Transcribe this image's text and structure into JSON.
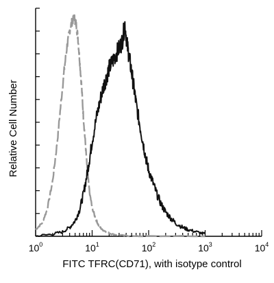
{
  "chart_data": {
    "type": "line",
    "title": "",
    "xlabel": "FITC  TFRC(CD71),  with isotype control",
    "ylabel": "Relative Cell Number",
    "x_scale": "log",
    "xlim": [
      1,
      10000
    ],
    "ylim": [
      0,
      1
    ],
    "x_ticks": [
      {
        "base": "10",
        "exp": "0"
      },
      {
        "base": "10",
        "exp": "1"
      },
      {
        "base": "10",
        "exp": "2"
      },
      {
        "base": "10",
        "exp": "3"
      },
      {
        "base": "10",
        "exp": "4"
      }
    ],
    "grid": false,
    "legend": "none",
    "series": [
      {
        "color": "#999999",
        "style": "dashed",
        "x": [
          1.0,
          1.3,
          1.6,
          2.0,
          2.4,
          2.8,
          3.2,
          3.6,
          4.0,
          4.4,
          4.8,
          5.2,
          5.6,
          6.0,
          6.5,
          7.0,
          7.6,
          8.2,
          9.0,
          10.0,
          11.5,
          13.0,
          15.0,
          18.0,
          22.0,
          30.0,
          50.0,
          100.0,
          1000.0
        ],
        "values": [
          0.03,
          0.06,
          0.12,
          0.25,
          0.42,
          0.6,
          0.75,
          0.86,
          0.93,
          0.97,
          0.99,
          0.96,
          0.9,
          0.8,
          0.68,
          0.54,
          0.42,
          0.3,
          0.2,
          0.13,
          0.08,
          0.05,
          0.03,
          0.02,
          0.01,
          0.005,
          0.0,
          0.0,
          0.0
        ]
      },
      {
        "color": "#111111",
        "style": "solid",
        "x": [
          1.0,
          2.0,
          3.0,
          4.0,
          5.0,
          6.0,
          7.0,
          8.0,
          9.0,
          10.0,
          12.0,
          14.0,
          16.0,
          18.0,
          20.0,
          23.0,
          26.0,
          30.0,
          34.0,
          38.0,
          42.0,
          46.0,
          50.0,
          55.0,
          60.0,
          70.0,
          80.0,
          90.0,
          100.0,
          120.0,
          140.0,
          170.0,
          200.0,
          250.0,
          300.0,
          400.0,
          500.0,
          700.0,
          1000.0
        ],
        "values": [
          0.0,
          0.01,
          0.02,
          0.04,
          0.07,
          0.12,
          0.19,
          0.27,
          0.35,
          0.43,
          0.54,
          0.62,
          0.68,
          0.72,
          0.76,
          0.79,
          0.82,
          0.85,
          0.88,
          0.96,
          0.86,
          0.8,
          0.74,
          0.67,
          0.6,
          0.5,
          0.42,
          0.35,
          0.3,
          0.24,
          0.19,
          0.14,
          0.11,
          0.08,
          0.06,
          0.04,
          0.03,
          0.02,
          0.01
        ]
      }
    ]
  }
}
